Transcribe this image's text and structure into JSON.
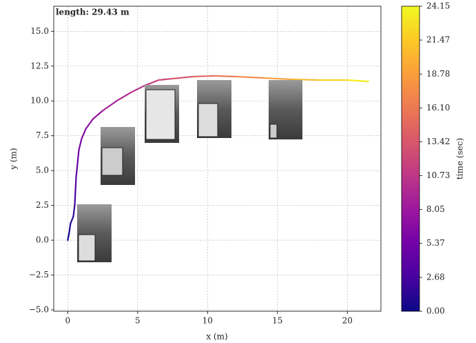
{
  "chart_data": {
    "type": "colored_line",
    "annotation": "length: 29.43 m",
    "xlabel": "x (m)",
    "ylabel": "y (m)",
    "colorbar_label": "time (sec)",
    "colormap": "plasma",
    "grid": true,
    "xlim": [
      -1,
      22.4
    ],
    "ylim": [
      -5.1,
      16.8
    ],
    "xticks": [
      0,
      5,
      10,
      15,
      20
    ],
    "yticks": [
      {
        "value": -5,
        "label": "−5.0"
      },
      {
        "value": -2.5,
        "label": "−2.5"
      },
      {
        "value": 0,
        "label": "0.0"
      },
      {
        "value": 2.5,
        "label": "2.5"
      },
      {
        "value": 5,
        "label": "5.0"
      },
      {
        "value": 7.5,
        "label": "7.5"
      },
      {
        "value": 10,
        "label": "10.0"
      },
      {
        "value": 12.5,
        "label": "12.5"
      },
      {
        "value": 15,
        "label": "15.0"
      }
    ],
    "clim": [
      0,
      24.15
    ],
    "cticks": [
      {
        "value": 0,
        "label": "0.00"
      },
      {
        "value": 2.68,
        "label": "2.68"
      },
      {
        "value": 5.37,
        "label": "5.37"
      },
      {
        "value": 8.05,
        "label": "8.05"
      },
      {
        "value": 10.73,
        "label": "10.73"
      },
      {
        "value": 13.42,
        "label": "13.42"
      },
      {
        "value": 16.1,
        "label": "16.10"
      },
      {
        "value": 18.78,
        "label": "18.78"
      },
      {
        "value": 21.47,
        "label": "21.47"
      },
      {
        "value": 24.15,
        "label": "24.15"
      }
    ],
    "x": [
      0,
      0.1,
      0.2,
      0.4,
      0.5,
      0.55,
      0.6,
      0.7,
      0.8,
      1.0,
      1.3,
      1.8,
      2.5,
      3.5,
      4.5,
      5.5,
      6.5,
      7.5,
      9,
      10.5,
      12,
      14,
      16,
      18,
      20,
      21.5
    ],
    "y": [
      0,
      0.5,
      1.2,
      1.7,
      2.5,
      3.5,
      4.5,
      5.5,
      6.5,
      7.3,
      8.0,
      8.7,
      9.3,
      10.0,
      10.6,
      11.1,
      11.5,
      11.6,
      11.75,
      11.8,
      11.75,
      11.65,
      11.55,
      11.5,
      11.5,
      11.4
    ],
    "t": [
      0,
      0.42,
      1.0,
      1.44,
      2.09,
      2.91,
      3.73,
      4.56,
      5.37,
      6.04,
      6.67,
      7.37,
      8.12,
      9.12,
      10.08,
      10.99,
      11.88,
      12.7,
      13.93,
      15.16,
      16.38,
      18.02,
      19.66,
      21.29,
      22.93,
      24.15
    ]
  }
}
